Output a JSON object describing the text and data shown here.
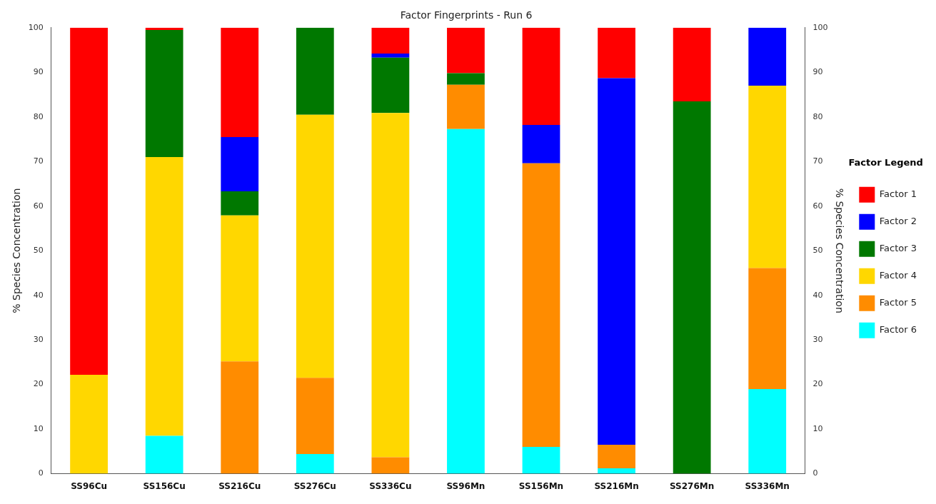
{
  "chart_data": {
    "type": "bar",
    "title": "Factor Fingerprints - Run 6",
    "ylabel": "% Species Concentration",
    "y2label": "% Species Concentration",
    "legend_title": "Factor Legend",
    "categories": [
      "SS96Cu",
      "SS156Cu",
      "SS216Cu",
      "SS276Cu",
      "SS336Cu",
      "SS96Mn",
      "SS156Mn",
      "SS216Mn",
      "SS276Mn",
      "SS336Mn"
    ],
    "stacked": true,
    "legend": "right",
    "grid": false,
    "ylim": [
      0,
      100
    ],
    "yticks": [
      0,
      10,
      20,
      30,
      40,
      50,
      60,
      70,
      80,
      90,
      100
    ],
    "y2lim": [
      0,
      100
    ],
    "y2ticks": [
      0,
      10,
      20,
      30,
      40,
      50,
      60,
      70,
      80,
      90,
      100
    ],
    "series": [
      {
        "name": "Factor 6",
        "color": "#00ffff",
        "values": [
          0,
          8.5,
          0,
          4.4,
          0,
          77.3,
          6,
          1.2,
          0,
          19
        ]
      },
      {
        "name": "Factor 5",
        "color": "#ff8c00",
        "values": [
          0,
          0,
          25.2,
          17.1,
          3.7,
          9.9,
          63.6,
          5.3,
          0,
          27.1
        ]
      },
      {
        "name": "Factor 4",
        "color": "#ffd700",
        "values": [
          22.2,
          62.5,
          32.7,
          59,
          77.2,
          0,
          0,
          0,
          0,
          40.9
        ]
      },
      {
        "name": "Factor 3",
        "color": "#007800",
        "values": [
          0,
          28.5,
          5.4,
          19.5,
          12.4,
          2.6,
          0,
          0,
          83.5,
          0
        ]
      },
      {
        "name": "Factor 2",
        "color": "#0000ff",
        "values": [
          0,
          0,
          12.2,
          0,
          0.9,
          0,
          8.6,
          82.2,
          0,
          13
        ]
      },
      {
        "name": "Factor 1",
        "color": "#ff0000",
        "values": [
          77.8,
          0.5,
          24.5,
          0,
          5.8,
          10.2,
          21.8,
          11.3,
          16.5,
          0
        ]
      }
    ]
  }
}
